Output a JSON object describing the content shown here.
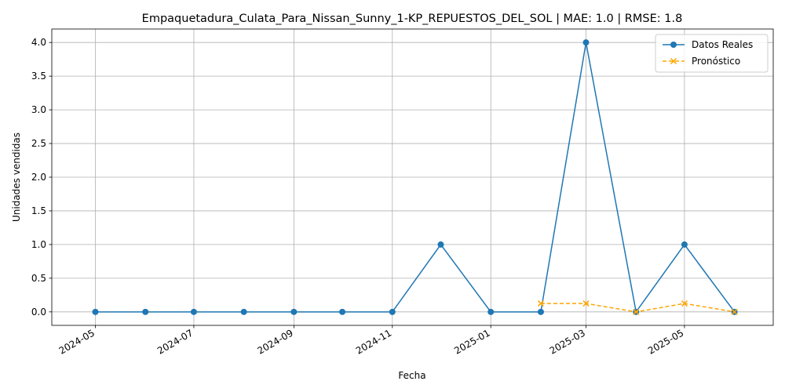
{
  "chart_data": {
    "type": "line",
    "title": "Empaquetadura_Culata_Para_Nissan_Sunny_1-KP_REPUESTOS_DEL_SOL | MAE: 1.0 | RMSE: 1.8",
    "xlabel": "Fecha",
    "ylabel": "Unidades vendidas",
    "x_ticks": [
      "2024-05",
      "2024-07",
      "2024-09",
      "2024-11",
      "2025-01",
      "2025-03",
      "2025-05"
    ],
    "y_ticks": [
      "0.0",
      "0.5",
      "1.0",
      "1.5",
      "2.0",
      "2.5",
      "3.0",
      "3.5",
      "4.0"
    ],
    "xlim": [
      "2024-04-04",
      "2025-06-25"
    ],
    "ylim": [
      -0.2,
      4.2
    ],
    "grid": true,
    "legend_position": "top-right",
    "series": [
      {
        "name": "Datos Reales",
        "color": "#1f77b4",
        "marker": "circle",
        "line_style": "solid",
        "x": [
          "2024-05-01",
          "2024-06-01",
          "2024-07-01",
          "2024-08-01",
          "2024-09-01",
          "2024-10-01",
          "2024-11-01",
          "2024-12-01",
          "2025-01-01",
          "2025-02-01",
          "2025-03-01",
          "2025-04-01",
          "2025-05-01",
          "2025-06-01"
        ],
        "y": [
          0,
          0,
          0,
          0,
          0,
          0,
          0,
          1,
          0,
          0,
          4,
          0,
          1,
          0
        ]
      },
      {
        "name": "Pronóstico",
        "color": "#ffa500",
        "marker": "x",
        "line_style": "dashed",
        "x": [
          "2025-02-01",
          "2025-03-01",
          "2025-04-01",
          "2025-05-01",
          "2025-06-01"
        ],
        "y": [
          0.125,
          0.125,
          0,
          0.125,
          0
        ]
      }
    ]
  }
}
